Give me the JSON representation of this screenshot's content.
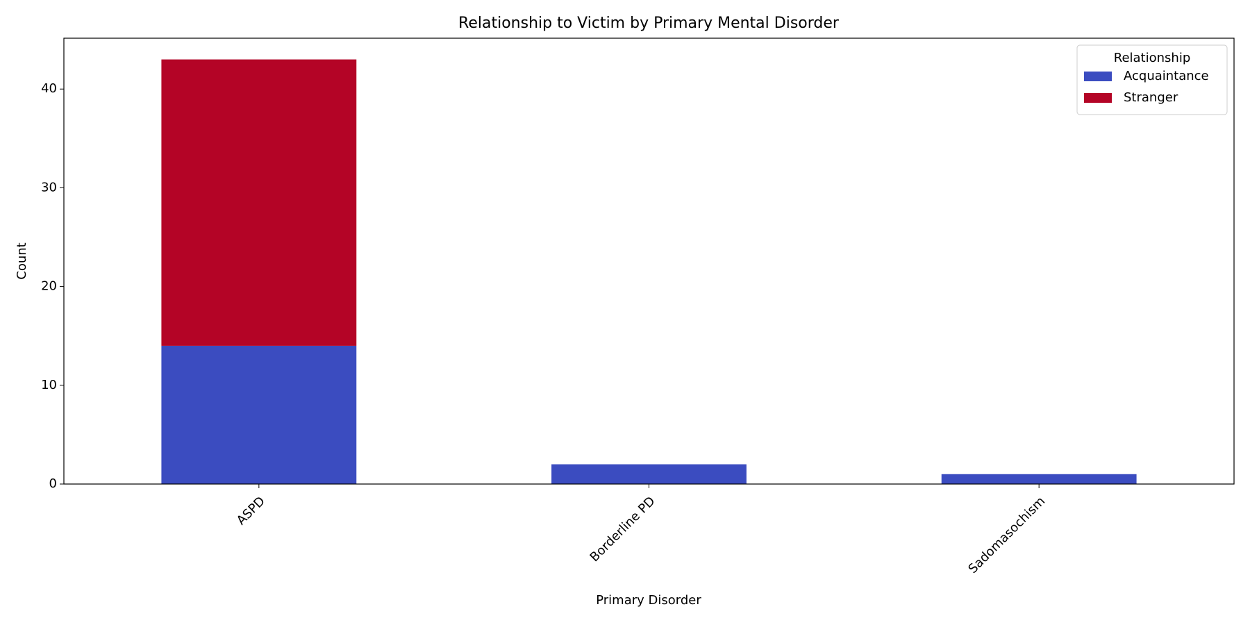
{
  "chart_data": {
    "type": "stacked_bar",
    "title": "Relationship to Victim by Primary Mental Disorder",
    "x_label": "Primary Disorder",
    "y_label": "Count",
    "categories": [
      "ASPD",
      "Borderline PD",
      "Sadomasochism"
    ],
    "series": [
      {
        "name": "Acquaintance",
        "color": "#3b4cc0",
        "values": [
          14,
          2,
          1
        ]
      },
      {
        "name": "Stranger",
        "color": "#b40426",
        "values": [
          29,
          0,
          0
        ]
      }
    ],
    "legend_title": "Relationship",
    "legend": "upper right",
    "ylim": [
      0,
      45.15
    ],
    "yticks": [
      0,
      10,
      20,
      30,
      40
    ],
    "grid": false
  }
}
